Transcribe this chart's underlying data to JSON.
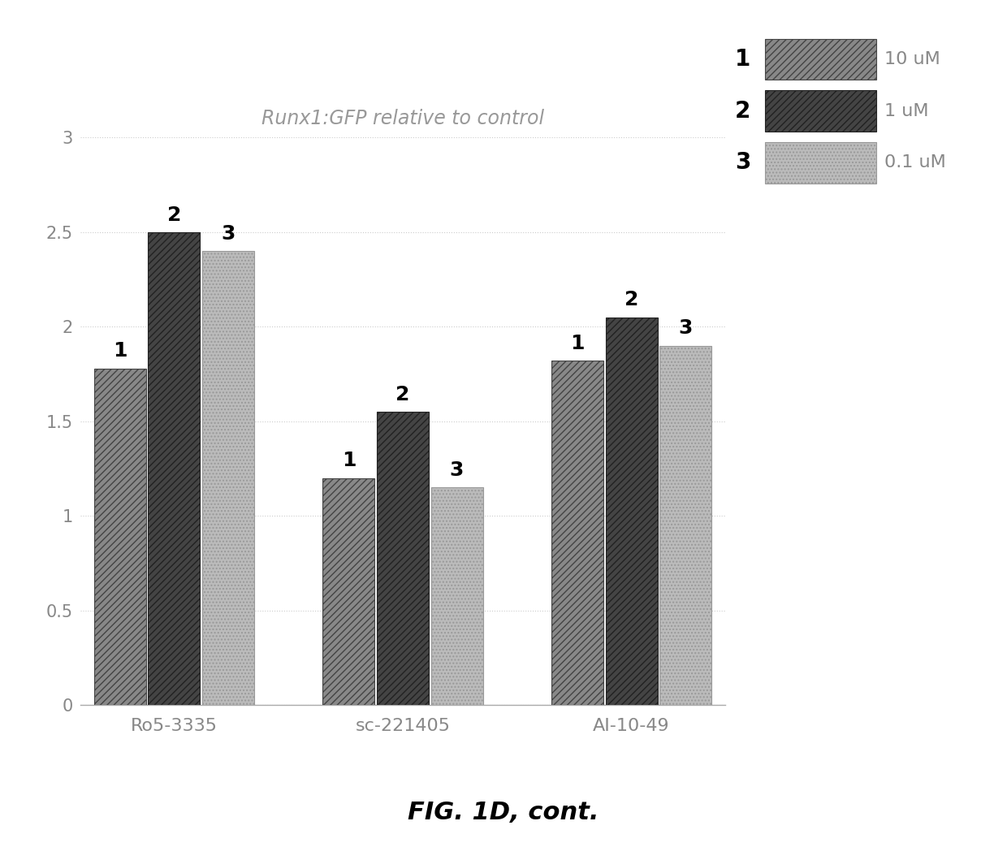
{
  "title": "Runx1:GFP relative to control",
  "categories": [
    "Ro5-3335",
    "sc-221405",
    "AI-10-49"
  ],
  "bar_labels": [
    "1",
    "2",
    "3"
  ],
  "legend_numbers": [
    "1",
    "2",
    "3"
  ],
  "legend_labels": [
    "10 uM",
    "1 uM",
    "0.1 uM"
  ],
  "values": [
    [
      1.78,
      2.5,
      2.4
    ],
    [
      1.2,
      1.55,
      1.15
    ],
    [
      1.82,
      2.05,
      1.9
    ]
  ],
  "ylim": [
    0,
    3
  ],
  "yticks": [
    0,
    0.5,
    1,
    1.5,
    2,
    2.5,
    3
  ],
  "ytick_labels": [
    "0",
    "0.5",
    "1",
    "1.5",
    "2",
    "2.5",
    "3"
  ],
  "bar_width": 0.25,
  "figure_caption": "FIG. 1D, cont.",
  "background_color": "#ffffff",
  "title_color": "#999999",
  "xticklabel_color": "#888888",
  "yticklabel_color": "#888888",
  "title_fontsize": 17,
  "caption_fontsize": 22,
  "bar_label_fontsize": 18,
  "xticklabel_fontsize": 16,
  "yticklabel_fontsize": 15,
  "legend_fontsize": 16,
  "legend_num_fontsize": 20,
  "hatch_bar1": "////",
  "hatch_bar2": "////",
  "hatch_bar3": "....",
  "facecolor_bar1": "#888888",
  "facecolor_bar2": "#444444",
  "facecolor_bar3": "#bbbbbb",
  "edgecolor_bar1": "#444444",
  "edgecolor_bar2": "#222222",
  "edgecolor_bar3": "#999999"
}
